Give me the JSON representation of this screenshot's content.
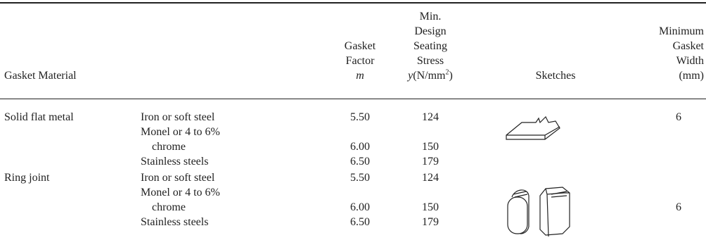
{
  "table": {
    "headers": [
      {
        "lines": [
          "Gasket Material"
        ]
      },
      {
        "lines": [
          "Gasket",
          "Factor",
          "m"
        ]
      },
      {
        "lines": [
          "Min.",
          "Design",
          "Seating",
          "Stress"
        ],
        "last": [
          "y",
          "(N/mm",
          "2",
          ")"
        ]
      },
      {
        "lines": [
          "Sketches"
        ]
      },
      {
        "lines": [
          "Minimum",
          "Gasket",
          "Width",
          "(mm)"
        ]
      }
    ],
    "groups": [
      {
        "material": "Solid flat metal",
        "width": "6",
        "items": [
          {
            "type": [
              "Iron or soft steel"
            ],
            "m": "5.50",
            "y": "124"
          },
          {
            "type": [
              "Monel or 4 to 6%",
              "chrome"
            ],
            "m": "6.00",
            "y": "150"
          },
          {
            "type": [
              "Stainless steels"
            ],
            "m": "6.50",
            "y": "179"
          }
        ]
      },
      {
        "material": "Ring joint",
        "width": "6",
        "items": [
          {
            "type": [
              "Iron or soft steel"
            ],
            "m": "5.50",
            "y": "124"
          },
          {
            "type": [
              "Monel or 4 to 6%",
              "chrome"
            ],
            "m": "6.00",
            "y": "150"
          },
          {
            "type": [
              "Stainless steels"
            ],
            "m": "6.50",
            "y": "179"
          }
        ]
      }
    ]
  }
}
